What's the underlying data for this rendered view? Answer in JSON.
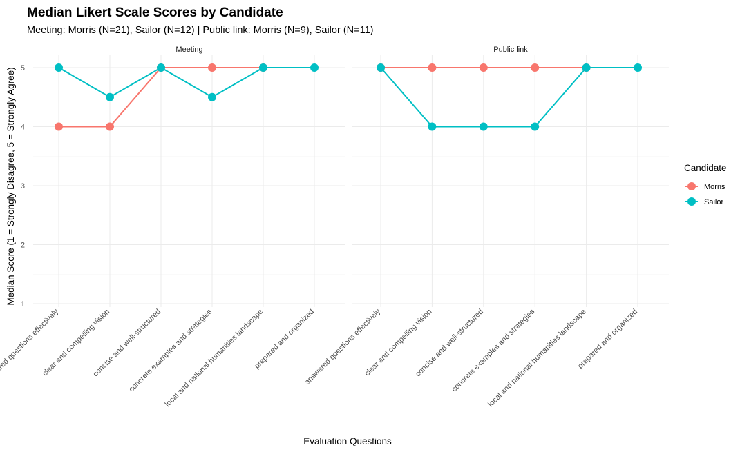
{
  "chart_data": {
    "type": "line",
    "title": "Median Likert Scale Scores by Candidate",
    "subtitle": "Meeting: Morris (N=21), Sailor (N=12) | Public link: Morris (N=9), Sailor (N=11)",
    "xlabel": "Evaluation Questions",
    "ylabel": "Median Score (1 = Strongly Disagree, 5 = Strongly Agree)",
    "ylim": [
      1,
      5
    ],
    "yticks": [
      "1",
      "2",
      "3",
      "4",
      "5"
    ],
    "grid": true,
    "legend": {
      "title": "Candidate",
      "placement": "right"
    },
    "categories": [
      "answered questions effectively",
      "clear and compelling vision",
      "concise and well-structured",
      "concrete examples and strategies",
      "local and national humanities landscape",
      "prepared and organized"
    ],
    "facets": [
      {
        "name": "Meeting",
        "series": [
          {
            "name": "Morris",
            "color": "#F8766D",
            "values": [
              4,
              4,
              5,
              5,
              5,
              null
            ]
          },
          {
            "name": "Sailor",
            "color": "#00BFC4",
            "values": [
              5,
              4.5,
              5,
              4.5,
              5,
              5
            ]
          }
        ]
      },
      {
        "name": "Public link",
        "series": [
          {
            "name": "Morris",
            "color": "#F8766D",
            "values": [
              5,
              5,
              5,
              5,
              5,
              null
            ]
          },
          {
            "name": "Sailor",
            "color": "#00BFC4",
            "values": [
              5,
              4,
              4,
              4,
              5,
              5
            ]
          }
        ]
      }
    ]
  }
}
